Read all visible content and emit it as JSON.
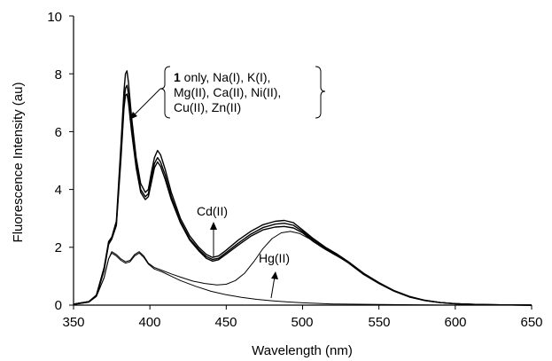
{
  "chart_data": {
    "type": "line",
    "title": "",
    "xlabel": "Wavelength (nm)",
    "ylabel": "Fluorescence Intensity (au)",
    "xlim": [
      350,
      650
    ],
    "ylim": [
      0,
      10
    ],
    "x_ticks": [
      "350",
      "400",
      "450",
      "500",
      "550",
      "600",
      "650"
    ],
    "y_ticks": [
      "0",
      "2",
      "4",
      "6",
      "8",
      "10"
    ],
    "grid": false,
    "legend": "none",
    "line_color": "#000000",
    "annotations": {
      "group_bold": "1",
      "group_line1_rest": " only, Na(I), K(I),",
      "group_line2": "Mg(II), Ca(II), Ni(II),",
      "group_line3": "Cu(II), Zn(II)",
      "cd_label": "Cd(II)",
      "hg_label": "Hg(II)"
    },
    "series": [
      {
        "values": [
          [
            350,
            0.03
          ],
          [
            360,
            0.12
          ],
          [
            365,
            0.35
          ],
          [
            370,
            1.3
          ],
          [
            373,
            2.2
          ],
          [
            375,
            2.35
          ],
          [
            378,
            2.9
          ],
          [
            381,
            5.5
          ],
          [
            383,
            7.4
          ],
          [
            384,
            8.0
          ],
          [
            385,
            8.1
          ],
          [
            386,
            7.7
          ],
          [
            388,
            6.5
          ],
          [
            391,
            5.1
          ],
          [
            394,
            4.2
          ],
          [
            397,
            3.9
          ],
          [
            399,
            4.0
          ],
          [
            401,
            4.6
          ],
          [
            403,
            5.1
          ],
          [
            405,
            5.35
          ],
          [
            407,
            5.2
          ],
          [
            410,
            4.7
          ],
          [
            414,
            3.9
          ],
          [
            420,
            3.0
          ],
          [
            426,
            2.4
          ],
          [
            432,
            2.0
          ],
          [
            437,
            1.75
          ],
          [
            441,
            1.65
          ],
          [
            445,
            1.7
          ],
          [
            450,
            1.9
          ],
          [
            458,
            2.25
          ],
          [
            466,
            2.55
          ],
          [
            474,
            2.78
          ],
          [
            482,
            2.9
          ],
          [
            488,
            2.93
          ],
          [
            494,
            2.85
          ],
          [
            500,
            2.6
          ],
          [
            507,
            2.3
          ],
          [
            515,
            2.0
          ],
          [
            523,
            1.75
          ],
          [
            530,
            1.5
          ],
          [
            540,
            1.1
          ],
          [
            550,
            0.78
          ],
          [
            560,
            0.5
          ],
          [
            570,
            0.3
          ],
          [
            580,
            0.17
          ],
          [
            590,
            0.09
          ],
          [
            600,
            0.05
          ],
          [
            615,
            0.02
          ],
          [
            630,
            0.01
          ],
          [
            650,
            0.0
          ]
        ]
      },
      {
        "values": [
          [
            350,
            0.03
          ],
          [
            360,
            0.12
          ],
          [
            365,
            0.33
          ],
          [
            370,
            1.25
          ],
          [
            373,
            2.15
          ],
          [
            375,
            2.3
          ],
          [
            378,
            2.8
          ],
          [
            381,
            5.2
          ],
          [
            383,
            7.0
          ],
          [
            384,
            7.5
          ],
          [
            385,
            7.6
          ],
          [
            386,
            7.3
          ],
          [
            388,
            6.2
          ],
          [
            391,
            4.9
          ],
          [
            394,
            4.0
          ],
          [
            397,
            3.75
          ],
          [
            399,
            3.85
          ],
          [
            401,
            4.4
          ],
          [
            403,
            4.9
          ],
          [
            405,
            5.1
          ],
          [
            407,
            4.95
          ],
          [
            410,
            4.5
          ],
          [
            414,
            3.75
          ],
          [
            420,
            2.9
          ],
          [
            426,
            2.3
          ],
          [
            432,
            1.93
          ],
          [
            437,
            1.68
          ],
          [
            441,
            1.58
          ],
          [
            445,
            1.62
          ],
          [
            450,
            1.82
          ],
          [
            458,
            2.15
          ],
          [
            466,
            2.45
          ],
          [
            474,
            2.68
          ],
          [
            482,
            2.8
          ],
          [
            488,
            2.83
          ],
          [
            494,
            2.76
          ],
          [
            500,
            2.55
          ],
          [
            507,
            2.25
          ],
          [
            515,
            1.96
          ],
          [
            523,
            1.72
          ],
          [
            530,
            1.48
          ],
          [
            540,
            1.08
          ],
          [
            550,
            0.76
          ],
          [
            560,
            0.49
          ],
          [
            570,
            0.29
          ],
          [
            580,
            0.16
          ],
          [
            590,
            0.09
          ],
          [
            600,
            0.05
          ],
          [
            615,
            0.02
          ],
          [
            630,
            0.01
          ],
          [
            650,
            0.0
          ]
        ]
      },
      {
        "values": [
          [
            350,
            0.03
          ],
          [
            360,
            0.12
          ],
          [
            365,
            0.32
          ],
          [
            370,
            1.2
          ],
          [
            373,
            2.1
          ],
          [
            375,
            2.28
          ],
          [
            378,
            2.75
          ],
          [
            381,
            5.0
          ],
          [
            383,
            6.8
          ],
          [
            384,
            7.25
          ],
          [
            385,
            7.3
          ],
          [
            386,
            7.0
          ],
          [
            388,
            6.0
          ],
          [
            391,
            4.75
          ],
          [
            394,
            3.9
          ],
          [
            397,
            3.65
          ],
          [
            399,
            3.75
          ],
          [
            401,
            4.25
          ],
          [
            403,
            4.75
          ],
          [
            405,
            4.95
          ],
          [
            407,
            4.8
          ],
          [
            410,
            4.35
          ],
          [
            414,
            3.65
          ],
          [
            420,
            2.85
          ],
          [
            426,
            2.25
          ],
          [
            432,
            1.88
          ],
          [
            437,
            1.62
          ],
          [
            441,
            1.52
          ],
          [
            445,
            1.57
          ],
          [
            450,
            1.76
          ],
          [
            458,
            2.08
          ],
          [
            466,
            2.38
          ],
          [
            474,
            2.6
          ],
          [
            482,
            2.7
          ],
          [
            488,
            2.72
          ],
          [
            494,
            2.67
          ],
          [
            500,
            2.5
          ],
          [
            507,
            2.2
          ],
          [
            515,
            1.93
          ],
          [
            523,
            1.7
          ],
          [
            530,
            1.46
          ],
          [
            540,
            1.06
          ],
          [
            550,
            0.75
          ],
          [
            560,
            0.48
          ],
          [
            570,
            0.28
          ],
          [
            580,
            0.16
          ],
          [
            590,
            0.09
          ],
          [
            600,
            0.05
          ],
          [
            615,
            0.02
          ],
          [
            630,
            0.01
          ],
          [
            650,
            0.0
          ]
        ]
      },
      {
        "values": [
          [
            350,
            0.02
          ],
          [
            360,
            0.1
          ],
          [
            365,
            0.3
          ],
          [
            370,
            0.95
          ],
          [
            373,
            1.6
          ],
          [
            375,
            1.85
          ],
          [
            378,
            1.75
          ],
          [
            381,
            1.6
          ],
          [
            384,
            1.5
          ],
          [
            387,
            1.55
          ],
          [
            390,
            1.75
          ],
          [
            393,
            1.85
          ],
          [
            396,
            1.7
          ],
          [
            399,
            1.45
          ],
          [
            403,
            1.3
          ],
          [
            408,
            1.2
          ],
          [
            414,
            1.08
          ],
          [
            420,
            0.97
          ],
          [
            428,
            0.83
          ],
          [
            436,
            0.75
          ],
          [
            444,
            0.7
          ],
          [
            450,
            0.72
          ],
          [
            456,
            0.85
          ],
          [
            462,
            1.1
          ],
          [
            468,
            1.5
          ],
          [
            474,
            1.95
          ],
          [
            480,
            2.3
          ],
          [
            486,
            2.5
          ],
          [
            492,
            2.55
          ],
          [
            498,
            2.48
          ],
          [
            505,
            2.28
          ],
          [
            512,
            2.02
          ],
          [
            520,
            1.77
          ],
          [
            528,
            1.53
          ],
          [
            536,
            1.25
          ],
          [
            545,
            0.92
          ],
          [
            555,
            0.62
          ],
          [
            565,
            0.38
          ],
          [
            575,
            0.22
          ],
          [
            585,
            0.12
          ],
          [
            595,
            0.07
          ],
          [
            610,
            0.03
          ],
          [
            630,
            0.01
          ],
          [
            650,
            0.0
          ]
        ]
      },
      {
        "values": [
          [
            350,
            0.02
          ],
          [
            360,
            0.1
          ],
          [
            365,
            0.3
          ],
          [
            370,
            0.95
          ],
          [
            373,
            1.6
          ],
          [
            375,
            1.8
          ],
          [
            378,
            1.7
          ],
          [
            381,
            1.55
          ],
          [
            384,
            1.45
          ],
          [
            387,
            1.5
          ],
          [
            390,
            1.7
          ],
          [
            393,
            1.8
          ],
          [
            396,
            1.65
          ],
          [
            399,
            1.42
          ],
          [
            403,
            1.25
          ],
          [
            408,
            1.15
          ],
          [
            414,
            1.0
          ],
          [
            420,
            0.85
          ],
          [
            430,
            0.65
          ],
          [
            440,
            0.48
          ],
          [
            450,
            0.36
          ],
          [
            460,
            0.27
          ],
          [
            470,
            0.2
          ],
          [
            480,
            0.15
          ],
          [
            490,
            0.11
          ],
          [
            500,
            0.08
          ],
          [
            520,
            0.04
          ],
          [
            550,
            0.02
          ],
          [
            600,
            0.0
          ],
          [
            650,
            0.0
          ]
        ]
      }
    ]
  }
}
